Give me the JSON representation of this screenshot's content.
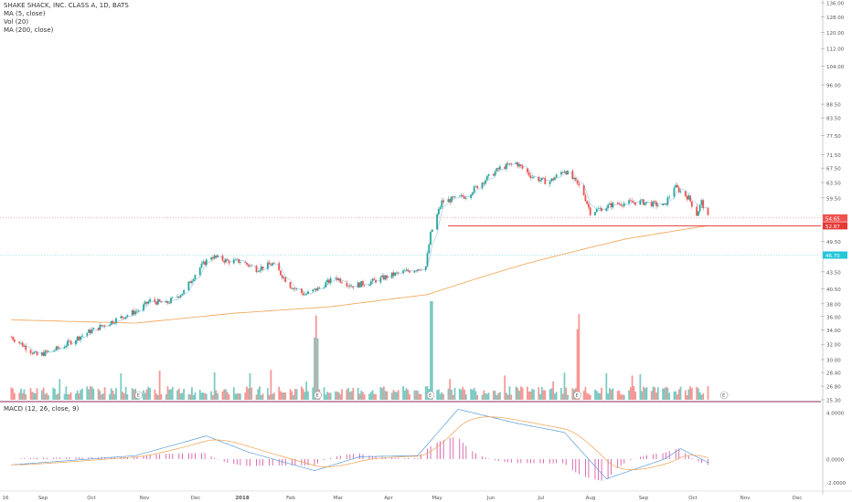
{
  "symbol_title": "SHAKE SHACK, INC. CLASS A, 1D, BATS",
  "legend": {
    "ma5": "MA (5, close)",
    "vol": "Vol (20)",
    "ma200": "MA (200, close)",
    "macd": "MACD (12, 26, close, 9)"
  },
  "colors": {
    "up": "#26a69a",
    "down": "#ef5350",
    "ma200": "#f0a150",
    "ma5": "#5b9bd5",
    "hline_red": "#e53935",
    "hline_cyan": "#26c6da",
    "macd_line": "#5b9bd5",
    "signal_line": "#f0a150",
    "macd_hist": "#d04aa0",
    "panel_border": "#8b2a5a"
  },
  "price_axis": {
    "ticks": [
      "136.00",
      "128.00",
      "120.00",
      "112.00",
      "104.00",
      "96.00",
      "88.50",
      "83.50",
      "77.50",
      "71.50",
      "67.50",
      "63.50",
      "59.50",
      "54.65",
      "52.87",
      "49.50",
      "46.70",
      "43.50",
      "40.50",
      "38.00",
      "36.00",
      "34.00",
      "32.00",
      "30.00",
      "28.40",
      "26.80",
      "25.30"
    ],
    "scale": "log"
  },
  "price_labels": {
    "last": "54.65",
    "red_line": "52.87",
    "cyan_line": "46.70"
  },
  "macd_axis": {
    "ticks": [
      "4.0000",
      "0.0000",
      "-2.0000"
    ]
  },
  "x_axis": {
    "labels": [
      "16",
      "Sep",
      "Oct",
      "Nov",
      "Dec",
      "2018",
      "Feb",
      "Mar",
      "Apr",
      "May",
      "Jun",
      "Jul",
      "Aug",
      "Sep",
      "Oct",
      "Nov",
      "Dec"
    ]
  },
  "earnings_marker": "E",
  "chart_data": {
    "type": "candlestick",
    "title": "SHAKE SHACK, INC. CLASS A, 1D, BATS",
    "series_close": {
      "name": "close",
      "points": [
        [
          "2017-08-16",
          33.0
        ],
        [
          "2017-09-01",
          30.5
        ],
        [
          "2017-09-15",
          31.5
        ],
        [
          "2017-10-01",
          33.5
        ],
        [
          "2017-10-15",
          35.0
        ],
        [
          "2017-11-03",
          37.0
        ],
        [
          "2017-11-10",
          38.5
        ],
        [
          "2017-11-20",
          38.0
        ],
        [
          "2017-12-01",
          40.0
        ],
        [
          "2017-12-10",
          44.0
        ],
        [
          "2017-12-18",
          46.5
        ],
        [
          "2017-12-28",
          45.5
        ],
        [
          "2018-01-05",
          45.5
        ],
        [
          "2018-01-15",
          44.0
        ],
        [
          "2018-01-25",
          45.0
        ],
        [
          "2018-02-05",
          41.0
        ],
        [
          "2018-02-14",
          39.5
        ],
        [
          "2018-02-22",
          40.5
        ],
        [
          "2018-03-05",
          42.5
        ],
        [
          "2018-03-15",
          41.0
        ],
        [
          "2018-03-25",
          41.5
        ],
        [
          "2018-04-10",
          43.0
        ],
        [
          "2018-04-30",
          44.5
        ],
        [
          "2018-05-03",
          51.0
        ],
        [
          "2018-05-10",
          58.5
        ],
        [
          "2018-05-25",
          60.0
        ],
        [
          "2018-06-05",
          64.0
        ],
        [
          "2018-06-15",
          67.5
        ],
        [
          "2018-06-25",
          69.0
        ],
        [
          "2018-07-05",
          65.0
        ],
        [
          "2018-07-15",
          63.5
        ],
        [
          "2018-07-25",
          67.0
        ],
        [
          "2018-08-05",
          61.5
        ],
        [
          "2018-08-10",
          56.0
        ],
        [
          "2018-08-25",
          58.0
        ],
        [
          "2018-09-10",
          58.5
        ],
        [
          "2018-09-25",
          57.5
        ],
        [
          "2018-10-01",
          62.5
        ],
        [
          "2018-10-10",
          59.5
        ],
        [
          "2018-10-15",
          55.5
        ],
        [
          "2018-10-18",
          58.5
        ],
        [
          "2018-10-22",
          54.65
        ]
      ]
    },
    "ma200": {
      "name": "MA (200, close)",
      "points": [
        [
          "2017-08-16",
          35.5
        ],
        [
          "2017-11-01",
          35.0
        ],
        [
          "2018-01-01",
          36.5
        ],
        [
          "2018-03-01",
          37.5
        ],
        [
          "2018-05-01",
          39.5
        ],
        [
          "2018-07-01",
          45.0
        ],
        [
          "2018-09-01",
          50.0
        ],
        [
          "2018-10-22",
          52.9
        ]
      ]
    },
    "horizontal_lines": [
      52.87,
      46.7,
      54.65
    ],
    "volume_spikes": [
      {
        "date": "2018-02-21",
        "side": "up_down",
        "level": "high"
      },
      {
        "date": "2018-05-04",
        "side": "up",
        "level": "highest"
      },
      {
        "date": "2018-08-03",
        "side": "down",
        "level": "high"
      }
    ],
    "earnings_dates": [
      "2017-11-03",
      "2018-02-22",
      "2018-05-03",
      "2018-08-02",
      "2018-11-01"
    ],
    "macd": {
      "name": "MACD (12, 26, close, 9)",
      "range": [
        -2.0,
        4.0
      ],
      "points": [
        [
          "2017-08-16",
          -0.5
        ],
        [
          "2017-11-01",
          0.3
        ],
        [
          "2017-12-15",
          2.0
        ],
        [
          "2018-01-10",
          0.6
        ],
        [
          "2018-02-20",
          -1.0
        ],
        [
          "2018-03-20",
          0.2
        ],
        [
          "2018-04-25",
          0.3
        ],
        [
          "2018-05-20",
          4.3
        ],
        [
          "2018-06-25",
          3.1
        ],
        [
          "2018-07-25",
          2.3
        ],
        [
          "2018-08-20",
          -1.7
        ],
        [
          "2018-09-25",
          0.0
        ],
        [
          "2018-10-05",
          0.9
        ],
        [
          "2018-10-22",
          -0.3
        ]
      ]
    }
  }
}
